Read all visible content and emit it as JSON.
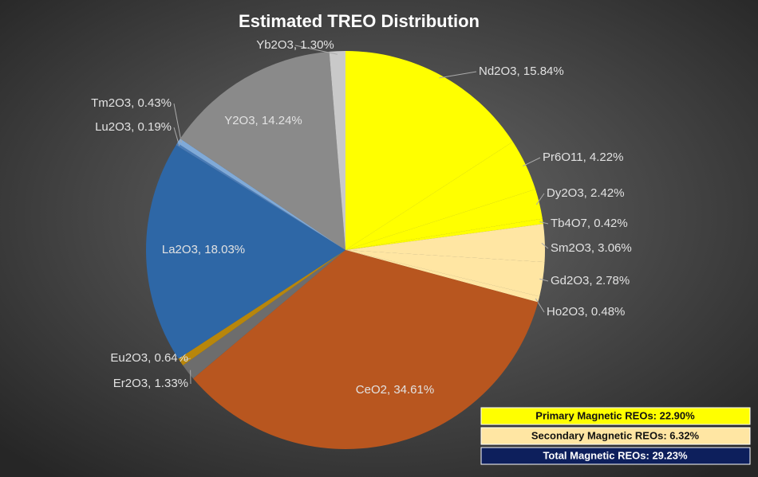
{
  "chart_data": {
    "type": "pie",
    "title": "Estimated TREO Distribution",
    "labels": [
      "Nd2O3, 15.84%",
      "Pr6O11, 4.22%",
      "Dy2O3, 2.42%",
      "Tb4O7, 0.42%",
      "Sm2O3, 3.06%",
      "Gd2O3, 2.78%",
      "Ho2O3, 0.48%",
      "CeO2, 34.61%",
      "Er2O3, 1.33%",
      "Eu2O3, 0.64%",
      "La2O3, 18.03%",
      "Lu2O3, 0.19%",
      "Tm2O3, 0.43%",
      "Y2O3, 14.24%",
      "Yb2O3, 1.30%"
    ],
    "values": [
      15.84,
      4.22,
      2.42,
      0.42,
      3.06,
      2.78,
      0.48,
      34.61,
      1.33,
      0.64,
      18.03,
      0.19,
      0.43,
      14.24,
      1.3
    ],
    "colors": [
      "#ffff00",
      "#ffff00",
      "#ffff00",
      "#ffff00",
      "#ffe6a3",
      "#ffe6a3",
      "#ffe6a3",
      "#b8561f",
      "#6d6d6d",
      "#b8860b",
      "#2e67a6",
      "#4a7cb8",
      "#80aad8",
      "#8a8a8a",
      "#c9c9c9"
    ],
    "summary": [
      {
        "text": "Primary Magnetic REOs: 22.90%",
        "color": "#ffff00"
      },
      {
        "text": "Secondary Magnetic REOs: 6.32%",
        "color": "#ffe6a3"
      },
      {
        "text": "Total Magnetic REOs: 29.23%",
        "color": "#0d1f5c"
      }
    ]
  }
}
